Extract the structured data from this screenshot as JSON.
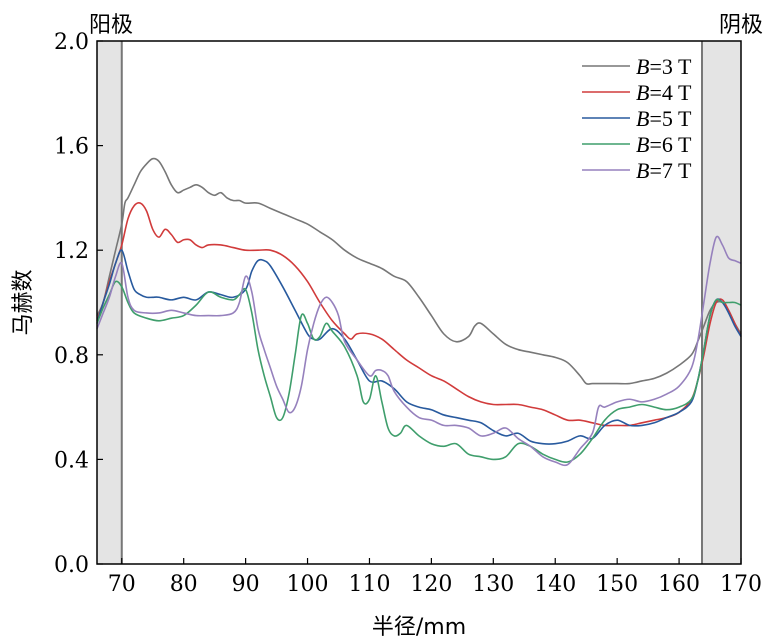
{
  "chart_data": {
    "type": "line",
    "title": "",
    "xlabel": "半径/mm",
    "ylabel": "马赫数",
    "xlim": [
      66,
      170
    ],
    "ylim": [
      0,
      2
    ],
    "xticks": [
      70,
      80,
      90,
      100,
      110,
      120,
      130,
      140,
      150,
      160,
      170
    ],
    "yticks": [
      "0.0",
      "0.4",
      "0.8",
      "1.2",
      "1.6",
      "2.0"
    ],
    "legend_position": "top-right",
    "grid": false,
    "regions": [
      {
        "label": "阳极",
        "x_start": 66,
        "x_end": 70
      },
      {
        "label": "阴极",
        "x_start": 163.7,
        "x_end": 170
      }
    ],
    "series": [
      {
        "name": "B=3 T",
        "name_italic": "B",
        "name_rest": "=3 T",
        "color": "#777777",
        "x": [
          66,
          67,
          68,
          69,
          70,
          70.5,
          71,
          72,
          73,
          74,
          75,
          76,
          77,
          78,
          79,
          80,
          81,
          82,
          83,
          84,
          85,
          86,
          87,
          88,
          89,
          90,
          92,
          94,
          96,
          98,
          100,
          102,
          104,
          106,
          108,
          110,
          112,
          114,
          116,
          118,
          120,
          122,
          124,
          126,
          127,
          128,
          130,
          132,
          134,
          136,
          138,
          140,
          142,
          144,
          145,
          146,
          148,
          150,
          152,
          154,
          156,
          158,
          160,
          162,
          163,
          164,
          165,
          166,
          167,
          168,
          169,
          170
        ],
        "y": [
          0.95,
          1.0,
          1.1,
          1.2,
          1.3,
          1.38,
          1.4,
          1.45,
          1.5,
          1.53,
          1.55,
          1.54,
          1.5,
          1.45,
          1.42,
          1.43,
          1.44,
          1.45,
          1.44,
          1.42,
          1.41,
          1.42,
          1.4,
          1.39,
          1.39,
          1.38,
          1.38,
          1.36,
          1.34,
          1.32,
          1.3,
          1.27,
          1.24,
          1.2,
          1.17,
          1.15,
          1.13,
          1.1,
          1.08,
          1.02,
          0.95,
          0.88,
          0.85,
          0.87,
          0.91,
          0.92,
          0.88,
          0.84,
          0.82,
          0.81,
          0.8,
          0.79,
          0.77,
          0.72,
          0.69,
          0.69,
          0.69,
          0.69,
          0.69,
          0.7,
          0.71,
          0.73,
          0.76,
          0.8,
          0.85,
          0.91,
          0.97,
          1.0,
          1.0,
          0.97,
          0.92,
          0.88
        ]
      },
      {
        "name": "B=4 T",
        "name_italic": "B",
        "name_rest": "=4 T",
        "color": "#d13b3b",
        "x": [
          66,
          67,
          68,
          69,
          70,
          71,
          72,
          73,
          74,
          75,
          76,
          77,
          78,
          79,
          80,
          81,
          82,
          83,
          84,
          86,
          88,
          90,
          92,
          94,
          96,
          98,
          100,
          102,
          104,
          106,
          107,
          108,
          110,
          112,
          114,
          116,
          118,
          120,
          122,
          124,
          126,
          128,
          130,
          132,
          134,
          136,
          138,
          140,
          142,
          144,
          146,
          148,
          150,
          152,
          154,
          156,
          158,
          160,
          162,
          163,
          164,
          165,
          166,
          167,
          168,
          169,
          170
        ],
        "y": [
          0.93,
          1.0,
          1.08,
          1.15,
          1.22,
          1.32,
          1.37,
          1.38,
          1.35,
          1.28,
          1.25,
          1.28,
          1.26,
          1.23,
          1.24,
          1.24,
          1.22,
          1.21,
          1.22,
          1.22,
          1.21,
          1.2,
          1.2,
          1.2,
          1.18,
          1.14,
          1.08,
          1.0,
          0.93,
          0.88,
          0.86,
          0.88,
          0.88,
          0.86,
          0.82,
          0.78,
          0.75,
          0.72,
          0.7,
          0.67,
          0.64,
          0.62,
          0.61,
          0.61,
          0.61,
          0.6,
          0.59,
          0.57,
          0.55,
          0.55,
          0.54,
          0.53,
          0.53,
          0.53,
          0.54,
          0.55,
          0.56,
          0.58,
          0.63,
          0.7,
          0.8,
          0.92,
          1.0,
          1.01,
          0.97,
          0.92,
          0.87
        ]
      },
      {
        "name": "B=5 T",
        "name_italic": "B",
        "name_rest": "=5 T",
        "color": "#285a9e",
        "x": [
          66,
          67,
          68,
          69,
          70,
          71,
          72,
          73,
          74,
          75,
          76,
          78,
          80,
          82,
          84,
          86,
          88,
          90,
          91,
          92,
          93,
          94,
          96,
          98,
          100,
          101,
          102,
          104,
          106,
          108,
          110,
          112,
          114,
          116,
          118,
          120,
          122,
          124,
          126,
          128,
          130,
          132,
          134,
          136,
          138,
          140,
          142,
          144,
          146,
          148,
          150,
          152,
          154,
          156,
          158,
          160,
          162,
          163,
          164,
          165,
          166,
          167,
          168,
          169,
          170
        ],
        "y": [
          0.92,
          1.0,
          1.07,
          1.15,
          1.2,
          1.12,
          1.05,
          1.03,
          1.02,
          1.02,
          1.02,
          1.01,
          1.02,
          1.01,
          1.04,
          1.03,
          1.02,
          1.05,
          1.12,
          1.16,
          1.16,
          1.14,
          1.06,
          0.97,
          0.88,
          0.86,
          0.86,
          0.9,
          0.86,
          0.78,
          0.7,
          0.7,
          0.67,
          0.62,
          0.6,
          0.59,
          0.57,
          0.56,
          0.55,
          0.54,
          0.51,
          0.49,
          0.5,
          0.47,
          0.46,
          0.46,
          0.47,
          0.49,
          0.48,
          0.53,
          0.55,
          0.53,
          0.53,
          0.54,
          0.56,
          0.58,
          0.62,
          0.7,
          0.82,
          0.95,
          1.01,
          1.0,
          0.96,
          0.91,
          0.87
        ]
      },
      {
        "name": "B=6 T",
        "name_italic": "B",
        "name_rest": "=6 T",
        "color": "#3f9e6c",
        "x": [
          66,
          67,
          68,
          69,
          70,
          71,
          72,
          74,
          76,
          78,
          80,
          82,
          84,
          86,
          88,
          89,
          90,
          91,
          92,
          93,
          94,
          95,
          96,
          97,
          98,
          99,
          100,
          101,
          102,
          103,
          104,
          106,
          108,
          109,
          110,
          111,
          112,
          113,
          114,
          115,
          116,
          118,
          120,
          122,
          124,
          126,
          128,
          130,
          132,
          134,
          136,
          138,
          140,
          142,
          144,
          146,
          148,
          150,
          152,
          154,
          156,
          158,
          160,
          162,
          163,
          164,
          165,
          166,
          167,
          168,
          169,
          170
        ],
        "y": [
          0.92,
          0.98,
          1.03,
          1.08,
          1.06,
          1.0,
          0.96,
          0.94,
          0.93,
          0.94,
          0.95,
          0.99,
          1.04,
          1.02,
          1.01,
          1.03,
          1.05,
          0.96,
          0.82,
          0.72,
          0.64,
          0.56,
          0.56,
          0.65,
          0.8,
          0.95,
          0.92,
          0.86,
          0.87,
          0.92,
          0.89,
          0.83,
          0.72,
          0.62,
          0.63,
          0.72,
          0.62,
          0.52,
          0.49,
          0.5,
          0.53,
          0.49,
          0.46,
          0.45,
          0.46,
          0.42,
          0.41,
          0.4,
          0.41,
          0.46,
          0.45,
          0.42,
          0.4,
          0.39,
          0.42,
          0.48,
          0.55,
          0.59,
          0.6,
          0.61,
          0.6,
          0.59,
          0.6,
          0.63,
          0.7,
          0.82,
          0.95,
          1.01,
          1.0,
          1.0,
          1.0,
          0.99
        ]
      },
      {
        "name": "B=7 T",
        "name_italic": "B",
        "name_rest": "=7 T",
        "color": "#9681bd",
        "x": [
          66,
          67,
          68,
          69,
          70,
          71,
          72,
          74,
          76,
          78,
          80,
          82,
          84,
          86,
          88,
          89,
          90,
          91,
          92,
          93,
          94,
          95,
          96,
          97,
          98,
          99,
          100,
          101,
          102,
          103,
          104,
          105,
          106,
          108,
          110,
          111,
          112,
          113,
          114,
          116,
          118,
          120,
          122,
          124,
          126,
          128,
          130,
          132,
          134,
          136,
          138,
          140,
          142,
          144,
          146,
          147,
          148,
          150,
          152,
          154,
          156,
          158,
          160,
          162,
          163,
          164,
          165,
          166,
          167,
          168,
          169,
          170
        ],
        "y": [
          0.9,
          0.96,
          1.02,
          1.1,
          1.15,
          1.02,
          0.97,
          0.96,
          0.96,
          0.97,
          0.96,
          0.95,
          0.95,
          0.95,
          0.96,
          1.0,
          1.1,
          1.04,
          0.9,
          0.82,
          0.75,
          0.68,
          0.63,
          0.58,
          0.6,
          0.68,
          0.82,
          0.92,
          0.99,
          1.02,
          1.0,
          0.95,
          0.85,
          0.78,
          0.72,
          0.74,
          0.74,
          0.72,
          0.66,
          0.6,
          0.56,
          0.55,
          0.53,
          0.53,
          0.52,
          0.49,
          0.5,
          0.52,
          0.48,
          0.45,
          0.41,
          0.39,
          0.38,
          0.44,
          0.5,
          0.6,
          0.6,
          0.62,
          0.63,
          0.62,
          0.63,
          0.65,
          0.68,
          0.75,
          0.85,
          1.0,
          1.15,
          1.25,
          1.22,
          1.17,
          1.16,
          1.15
        ]
      }
    ]
  }
}
